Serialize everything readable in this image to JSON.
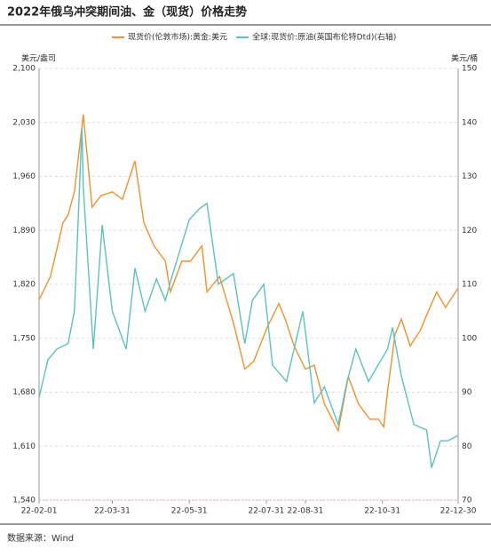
{
  "chart_data": {
    "type": "line",
    "title": "2022年俄乌冲突期间油、金（现货）价格走势",
    "ylabel": "美元/盎司",
    "y2label": "美元/桶",
    "note": "数据来源：Wind",
    "xlim": [
      "22-02-01",
      "22-12-30"
    ],
    "xticks": [
      "22-02-01",
      "22-03-31",
      "22-05-31",
      "22-07-31",
      "22-08-31",
      "22-10-31",
      "22-12-30"
    ],
    "ylim": [
      1540,
      2100
    ],
    "yticks": [
      {
        "value": 1540,
        "label": "1,540"
      },
      {
        "value": 1610,
        "label": "1,610"
      },
      {
        "value": 1680,
        "label": "1,680"
      },
      {
        "value": 1750,
        "label": "1,750"
      },
      {
        "value": 1820,
        "label": "1,820"
      },
      {
        "value": 1890,
        "label": "1,890"
      },
      {
        "value": 1960,
        "label": "1,960"
      },
      {
        "value": 2030,
        "label": "2,030"
      },
      {
        "value": 2100,
        "label": "2,100"
      }
    ],
    "y2lim": [
      70,
      150
    ],
    "y2ticks": [
      70,
      80,
      90,
      100,
      110,
      120,
      130,
      140,
      150
    ],
    "grid": true,
    "series": [
      {
        "name": "现货价(伦敦市场):黄金:美元",
        "color": "#f0922b",
        "x": [
          "22-02-01",
          "22-02-10",
          "22-02-20",
          "22-02-24",
          "22-03-01",
          "22-03-08",
          "22-03-15",
          "22-03-22",
          "22-03-31",
          "22-04-08",
          "22-04-18",
          "22-04-25",
          "22-05-03",
          "22-05-12",
          "22-05-16",
          "22-05-25",
          "22-06-01",
          "22-06-10",
          "22-06-14",
          "22-06-24",
          "22-07-05",
          "22-07-14",
          "22-07-21",
          "22-08-01",
          "22-08-10",
          "22-08-15",
          "22-08-22",
          "22-08-31",
          "22-09-07",
          "22-09-15",
          "22-09-26",
          "22-10-04",
          "22-10-12",
          "22-10-21",
          "22-10-28",
          "22-11-01",
          "22-11-04",
          "22-11-10",
          "22-11-15",
          "22-11-22",
          "22-11-30",
          "22-12-05",
          "22-12-13",
          "22-12-20",
          "22-12-30"
        ],
        "values": [
          1800,
          1830,
          1900,
          1910,
          1940,
          2040,
          1920,
          1935,
          1940,
          1930,
          1980,
          1900,
          1870,
          1850,
          1810,
          1850,
          1850,
          1870,
          1810,
          1830,
          1770,
          1710,
          1720,
          1765,
          1795,
          1775,
          1740,
          1710,
          1715,
          1665,
          1630,
          1700,
          1665,
          1645,
          1645,
          1635,
          1680,
          1755,
          1775,
          1740,
          1760,
          1780,
          1810,
          1790,
          1815
        ]
      },
      {
        "name": "全球:现货价:原油(英国布伦特Dtd)(右轴)",
        "color": "#5bc2c0",
        "axis": "y2",
        "x": [
          "22-02-01",
          "22-02-08",
          "22-02-15",
          "22-02-24",
          "22-03-01",
          "22-03-07",
          "22-03-08",
          "22-03-16",
          "22-03-23",
          "22-03-31",
          "22-04-11",
          "22-04-18",
          "22-04-26",
          "22-05-05",
          "22-05-12",
          "22-05-18",
          "22-05-31",
          "22-06-08",
          "22-06-14",
          "22-06-23",
          "22-07-05",
          "22-07-14",
          "22-07-20",
          "22-07-29",
          "22-08-05",
          "22-08-16",
          "22-08-29",
          "22-09-07",
          "22-09-15",
          "22-09-26",
          "22-10-03",
          "22-10-10",
          "22-10-20",
          "22-11-04",
          "22-11-08",
          "22-11-15",
          "22-11-25",
          "22-12-05",
          "22-12-09",
          "22-12-16",
          "22-12-22",
          "22-12-30"
        ],
        "values": [
          89,
          96,
          98,
          99,
          105,
          139,
          128,
          98,
          121,
          105,
          98,
          113,
          105,
          111,
          107,
          112,
          122,
          124,
          125,
          110,
          112,
          99,
          107,
          110,
          95,
          92,
          105,
          88,
          91,
          84,
          92,
          98,
          92,
          98,
          102,
          93,
          84,
          83,
          76,
          81,
          81,
          82
        ]
      }
    ]
  }
}
